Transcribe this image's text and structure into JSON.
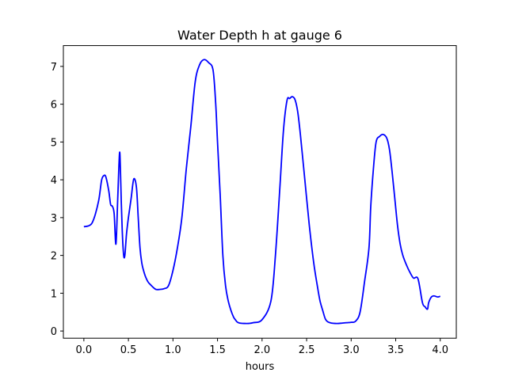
{
  "chart_data": {
    "type": "line",
    "title": "Water Depth h at gauge 6",
    "xlabel": "hours",
    "ylabel": "",
    "xlim": [
      -0.23,
      4.18
    ],
    "ylim": [
      -0.19,
      7.55
    ],
    "xticks": [
      0.0,
      0.5,
      1.0,
      1.5,
      2.0,
      2.5,
      3.0,
      3.5,
      4.0
    ],
    "xtick_labels": [
      "0.0",
      "0.5",
      "1.0",
      "1.5",
      "2.0",
      "2.5",
      "3.0",
      "3.5",
      "4.0"
    ],
    "yticks": [
      0,
      1,
      2,
      3,
      4,
      5,
      6,
      7
    ],
    "ytick_labels": [
      "0",
      "1",
      "2",
      "3",
      "4",
      "5",
      "6",
      "7"
    ],
    "grid": false,
    "series": [
      {
        "color": "#0000ff",
        "x": [
          0.0,
          0.05,
          0.09,
          0.13,
          0.17,
          0.2,
          0.23,
          0.25,
          0.28,
          0.3,
          0.32,
          0.34,
          0.36,
          0.38,
          0.4,
          0.41,
          0.42,
          0.43,
          0.44,
          0.45,
          0.46,
          0.47,
          0.48,
          0.5,
          0.53,
          0.56,
          0.59,
          0.61,
          0.63,
          0.65,
          0.67,
          0.69,
          0.72,
          0.75,
          0.78,
          0.81,
          0.85,
          0.9,
          0.95,
          1.0,
          1.05,
          1.1,
          1.15,
          1.2,
          1.25,
          1.3,
          1.35,
          1.4,
          1.45,
          1.48,
          1.5,
          1.53,
          1.56,
          1.59,
          1.62,
          1.65,
          1.68,
          1.7,
          1.72,
          1.75,
          1.8,
          1.85,
          1.9,
          2.0,
          2.1,
          2.15,
          2.2,
          2.24,
          2.28,
          2.31,
          2.34,
          2.37,
          2.4,
          2.43,
          2.48,
          2.53,
          2.58,
          2.62,
          2.65,
          2.68,
          2.71,
          2.74,
          2.78,
          2.82,
          2.86,
          2.9,
          2.95,
          3.0,
          3.05,
          3.1,
          3.15,
          3.2,
          3.22,
          3.25,
          3.28,
          3.32,
          3.36,
          3.4,
          3.43,
          3.46,
          3.49,
          3.52,
          3.55,
          3.58,
          3.62,
          3.66,
          3.7,
          3.75,
          3.8,
          3.83,
          3.85,
          3.86,
          3.87,
          3.9,
          3.93,
          3.97,
          4.0
        ],
        "y": [
          2.76,
          2.78,
          2.85,
          3.1,
          3.5,
          4.0,
          4.12,
          4.05,
          3.7,
          3.35,
          3.3,
          3.1,
          2.3,
          3.5,
          4.7,
          4.3,
          3.4,
          2.7,
          2.2,
          1.95,
          2.0,
          2.3,
          2.6,
          3.0,
          3.5,
          4.02,
          3.8,
          3.0,
          2.2,
          1.8,
          1.6,
          1.45,
          1.3,
          1.22,
          1.15,
          1.1,
          1.1,
          1.12,
          1.2,
          1.6,
          2.2,
          3.0,
          4.3,
          5.4,
          6.6,
          7.05,
          7.18,
          7.1,
          6.9,
          6.0,
          5.0,
          3.6,
          2.0,
          1.2,
          0.8,
          0.55,
          0.37,
          0.3,
          0.24,
          0.21,
          0.2,
          0.2,
          0.22,
          0.3,
          0.8,
          2.0,
          3.8,
          5.3,
          6.1,
          6.15,
          6.2,
          6.12,
          5.8,
          5.2,
          4.0,
          2.8,
          1.8,
          1.2,
          0.8,
          0.55,
          0.32,
          0.24,
          0.21,
          0.2,
          0.2,
          0.21,
          0.22,
          0.23,
          0.26,
          0.5,
          1.3,
          2.2,
          3.3,
          4.3,
          5.0,
          5.15,
          5.2,
          5.1,
          4.8,
          4.2,
          3.5,
          2.8,
          2.3,
          2.0,
          1.75,
          1.55,
          1.4,
          1.38,
          0.75,
          0.64,
          0.58,
          0.6,
          0.75,
          0.9,
          0.93,
          0.9,
          0.92
        ]
      }
    ]
  }
}
